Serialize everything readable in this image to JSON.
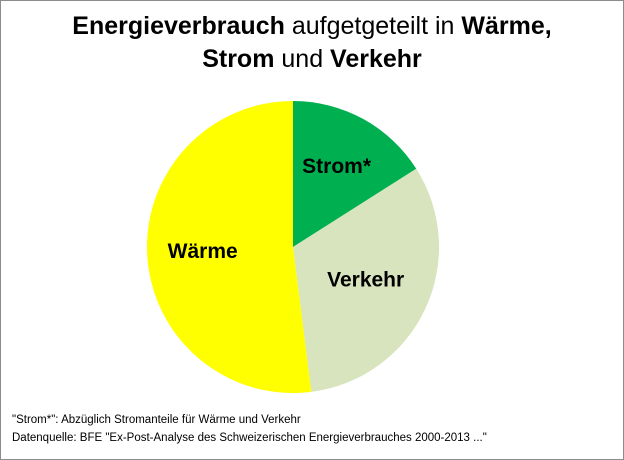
{
  "title": {
    "line1_bold": "Energieverbrauch",
    "line1_normal": " aufgetgeteilt in ",
    "line1_bold2": "Wärme,",
    "line2_bold": "Strom",
    "line2_normal": " und ",
    "line2_bold2": "Verkehr"
  },
  "chart_data": {
    "type": "pie",
    "categories": [
      "Strom*",
      "Verkehr",
      "Wärme"
    ],
    "values": [
      16,
      32,
      52
    ],
    "colors": [
      "#00b050",
      "#d7e4bd",
      "#ffff00"
    ],
    "start_angle": "12 o'clock, clockwise",
    "legend": "none",
    "data_labels": true
  },
  "footnotes": {
    "line1": "\"Strom*\": Abzüglich Stromanteile für Wärme und  Verkehr",
    "line2": "Datenquelle: BFE \"Ex-Post-Analyse des Schweizerischen Energieverbrauches 2000-2013 ...\""
  }
}
